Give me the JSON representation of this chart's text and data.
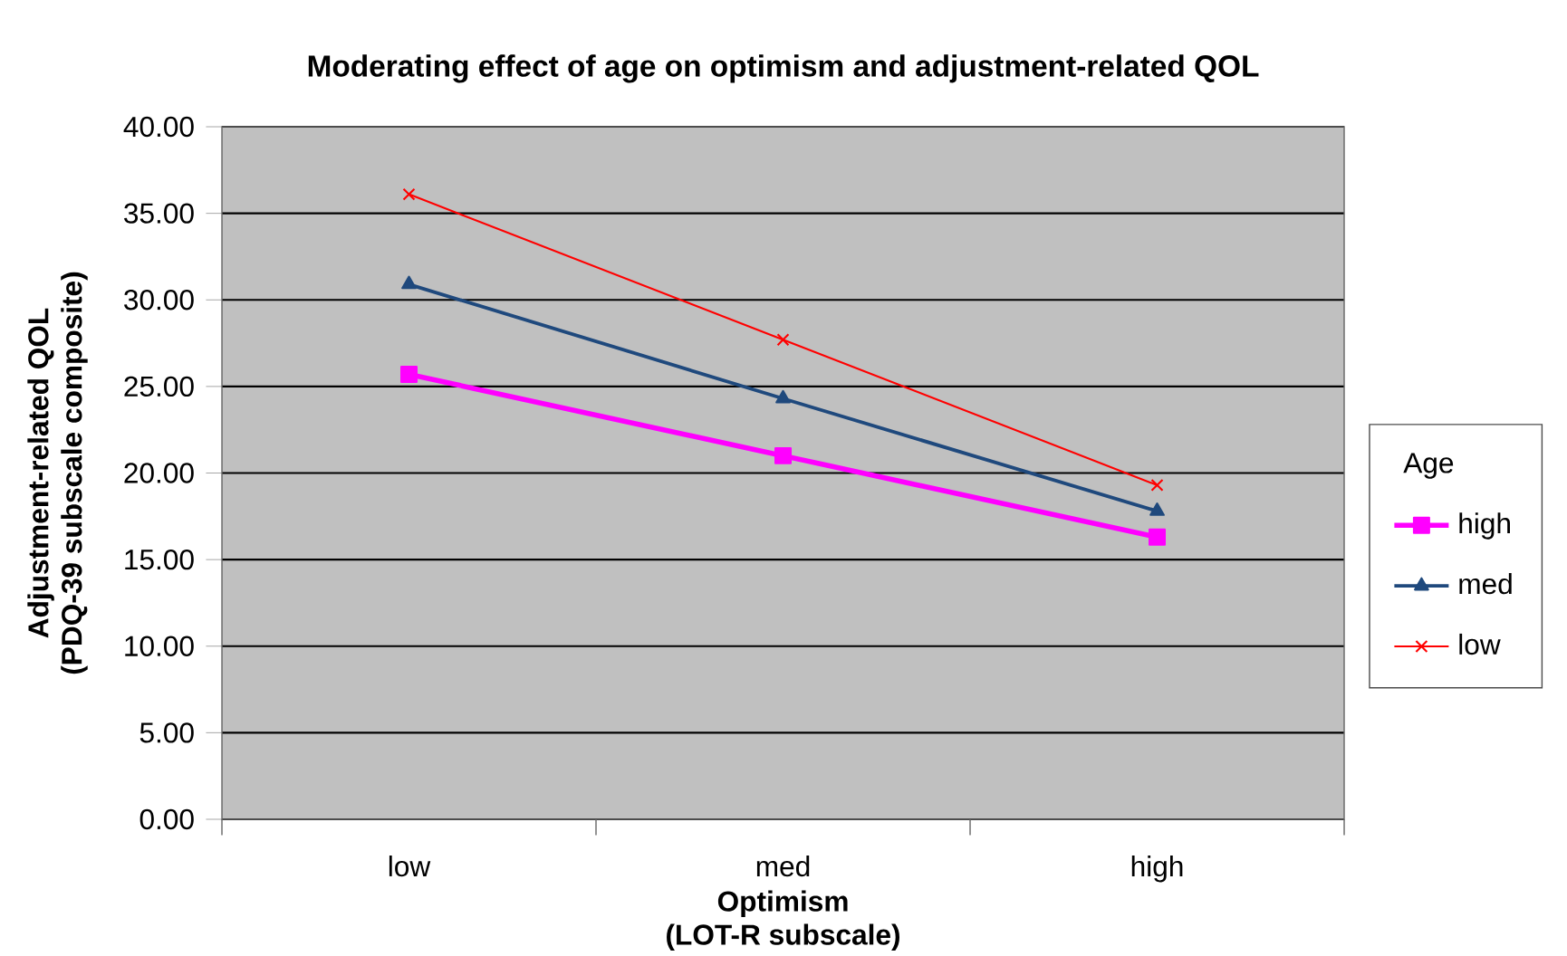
{
  "chart_data": {
    "type": "line",
    "title": "Moderating effect of age on optimism and adjustment-related QOL",
    "xlabel": "Optimism\n(LOT-R subscale)",
    "ylabel": "Adjustment-related QOL\n(PDQ-39 subscale composite)",
    "legend_title": "Age",
    "legend": "right",
    "grid": "y",
    "categories": [
      "low",
      "med",
      "high"
    ],
    "ylim": [
      0,
      40
    ],
    "yticks": [
      {
        "value": 0,
        "label": "0.00"
      },
      {
        "value": 5,
        "label": "5.00"
      },
      {
        "value": 10,
        "label": "10.00"
      },
      {
        "value": 15,
        "label": "15.00"
      },
      {
        "value": 20,
        "label": "20.00"
      },
      {
        "value": 25,
        "label": "25.00"
      },
      {
        "value": 30,
        "label": "30.00"
      },
      {
        "value": 35,
        "label": "35.00"
      },
      {
        "value": 40,
        "label": "40.00"
      }
    ],
    "series": [
      {
        "name": "high",
        "color": "#ff00ff",
        "marker": "square",
        "values": [
          25.7,
          21.0,
          16.3
        ]
      },
      {
        "name": "med",
        "color": "#1f497d",
        "marker": "triangle",
        "values": [
          30.9,
          24.3,
          17.8
        ]
      },
      {
        "name": "low",
        "color": "#ff0000",
        "marker": "cross",
        "values": [
          36.1,
          27.7,
          19.3
        ]
      }
    ]
  }
}
